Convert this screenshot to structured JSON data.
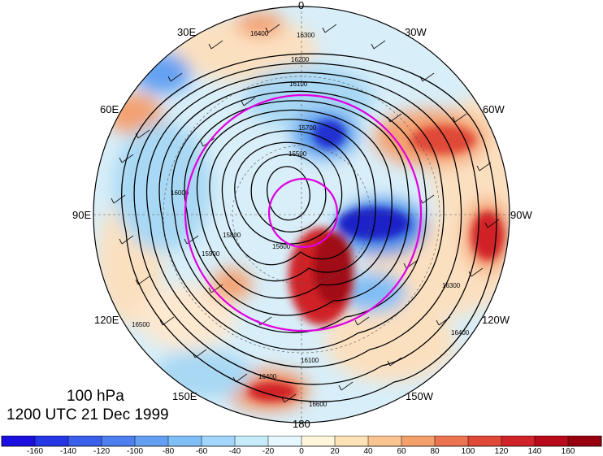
{
  "map": {
    "level_label": "100 hPa",
    "time_label": "1200 UTC 21 Dec 1999",
    "lon_labels": {
      "north": "0",
      "south": "180",
      "east": "90E",
      "west": "90W",
      "e30": "30E",
      "w30": "30W",
      "e60": "60E",
      "w60": "60W",
      "e120": "120E",
      "w120": "120W",
      "e150": "150E",
      "w150": "150W"
    },
    "contour_labels": [
      "16300",
      "16400",
      "16200",
      "16100",
      "16000",
      "15900",
      "15800",
      "15700",
      "15600",
      "15500",
      "16500",
      "16600"
    ],
    "colors": {
      "neg_strong": "#1a20c8",
      "neg_mid": "#4a90e8",
      "neg_light": "#b8e4f6",
      "pos_light": "#fbe0c0",
      "pos_mid": "#f29060",
      "pos_strong": "#c01020",
      "circle": "#e000e0"
    }
  },
  "colorbar": {
    "ticks": [
      "-160",
      "-140",
      "-120",
      "-100",
      "-80",
      "-60",
      "-40",
      "-20",
      "0",
      "20",
      "40",
      "60",
      "80",
      "100",
      "120",
      "140",
      "160"
    ],
    "colors": [
      "#1a0ee0",
      "#2436e6",
      "#3a5fea",
      "#4d7fee",
      "#64a0f2",
      "#80bef6",
      "#a2d6fa",
      "#c6ecfc",
      "#e6f8ff",
      "#fff6dc",
      "#fde2b8",
      "#f9c490",
      "#f3a06c",
      "#ec7450",
      "#e04838",
      "#d02228",
      "#b80a18",
      "#980010"
    ]
  }
}
